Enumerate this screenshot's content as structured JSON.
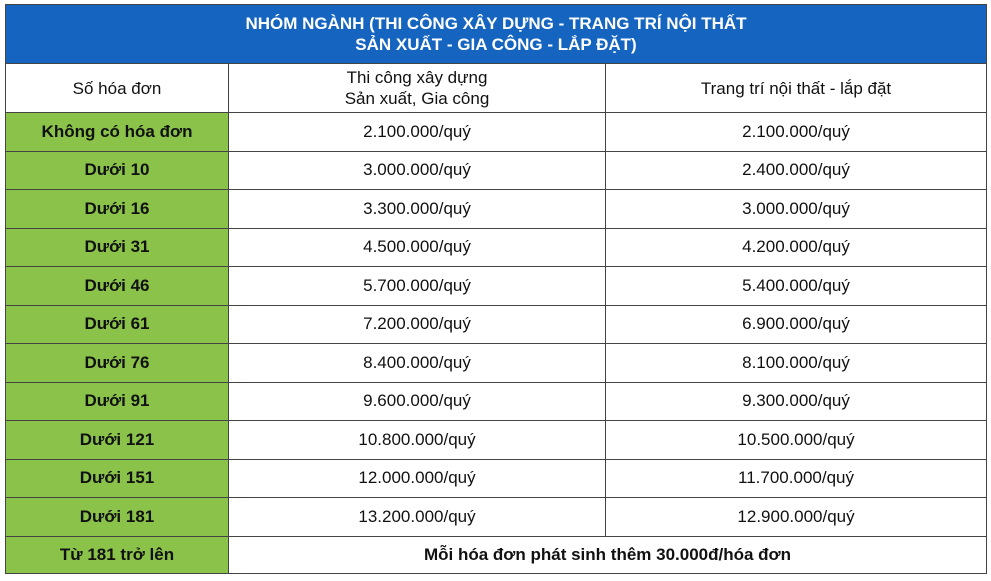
{
  "title": {
    "line1": "NHÓM NGÀNH (THI CÔNG XÂY DỰNG - TRANG TRÍ NỘI THẤT",
    "line2": "SẢN XUẤT - GIA CÔNG - LẮP ĐẶT)"
  },
  "headers": {
    "col1": "Số hóa đơn",
    "col2_line1": "Thi công xây dựng",
    "col2_line2": "Sản xuất, Gia công",
    "col3": "Trang trí nội thất - lắp đặt"
  },
  "rows": [
    {
      "label": "Không có hóa đơn",
      "construction": "2.100.000/quý",
      "interior": "2.100.000/quý"
    },
    {
      "label": "Dưới 10",
      "construction": "3.000.000/quý",
      "interior": "2.400.000/quý"
    },
    {
      "label": "Dưới 16",
      "construction": "3.300.000/quý",
      "interior": "3.000.000/quý"
    },
    {
      "label": "Dưới 31",
      "construction": "4.500.000/quý",
      "interior": "4.200.000/quý"
    },
    {
      "label": "Dưới 46",
      "construction": "5.700.000/quý",
      "interior": "5.400.000/quý"
    },
    {
      "label": "Dưới 61",
      "construction": "7.200.000/quý",
      "interior": "6.900.000/quý"
    },
    {
      "label": "Dưới 76",
      "construction": "8.400.000/quý",
      "interior": "8.100.000/quý"
    },
    {
      "label": "Dưới 91",
      "construction": "9.600.000/quý",
      "interior": "9.300.000/quý"
    },
    {
      "label": "Dưới 121",
      "construction": "10.800.000/quý",
      "interior": "10.500.000/quý"
    },
    {
      "label": "Dưới 151",
      "construction": "12.000.000/quý",
      "interior": "11.700.000/quý"
    },
    {
      "label": "Dưới 181",
      "construction": "13.200.000/quý",
      "interior": "12.900.000/quý"
    }
  ],
  "footer": {
    "label": "Từ 181 trở lên",
    "note": "Mỗi hóa đơn phát sinh thêm 30.000đ/hóa đơn"
  },
  "colors": {
    "title_bg": "#1565c0",
    "label_bg": "#8bc34a",
    "border": "#444444"
  }
}
